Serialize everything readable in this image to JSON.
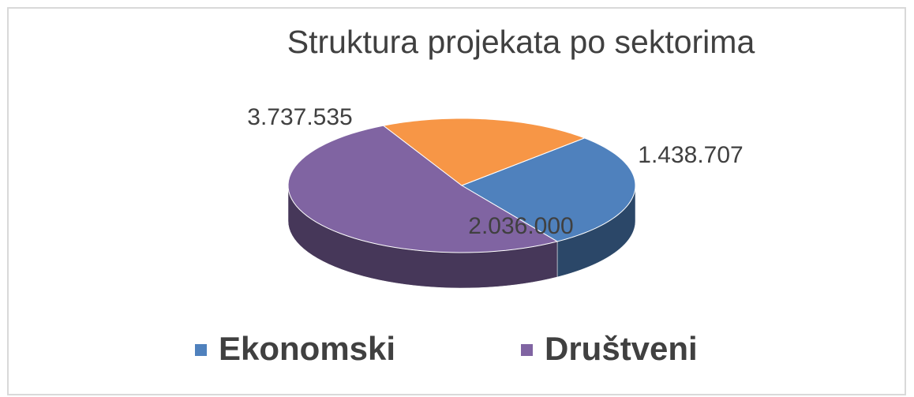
{
  "chart_data": {
    "type": "pie",
    "title": "Struktura projekata po sektorima",
    "categories": [
      "Ekonomski",
      "Društveni",
      null
    ],
    "values": [
      2036000,
      3737535,
      1438707
    ],
    "value_labels": [
      "2.036.000",
      "3.737.535",
      "1.438.707"
    ],
    "colors": [
      "#4f81bd",
      "#8064a2",
      "#f79646"
    ],
    "legend": "bottom"
  }
}
